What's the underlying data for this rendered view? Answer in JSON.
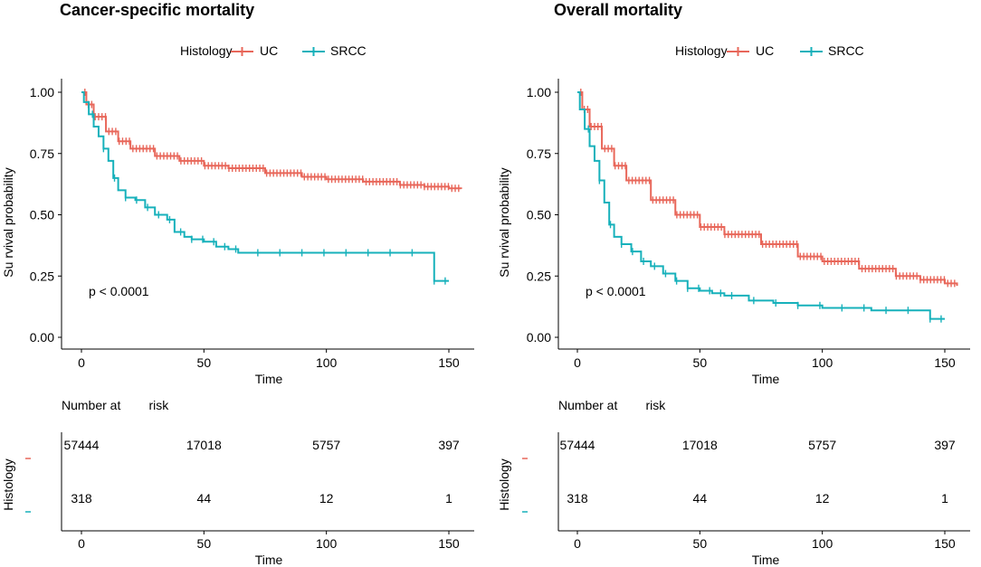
{
  "chart_data": [
    {
      "type": "line",
      "chart_kind": "kaplan-meier",
      "title": "Cancer-specific mortality",
      "xlabel": "Time",
      "ylabel": "Su rvival probability",
      "xlim": [
        0,
        155
      ],
      "ylim": [
        0,
        1
      ],
      "xticks": [
        "0",
        "50",
        "100",
        "150"
      ],
      "xtick_values": [
        0,
        50,
        100,
        150
      ],
      "yticks": [
        "0.00",
        "0.25",
        "0.50",
        "0.75",
        "1.00"
      ],
      "ytick_values": [
        0,
        0.25,
        0.5,
        0.75,
        1
      ],
      "legend_title": "Histology",
      "pvalue": "p < 0.0001",
      "series": [
        {
          "name": "UC",
          "color": "#e8675a",
          "x": [
            0,
            2,
            5,
            10,
            15,
            20,
            30,
            40,
            50,
            60,
            75,
            90,
            100,
            115,
            130,
            140,
            150,
            155
          ],
          "values": [
            1.0,
            0.95,
            0.9,
            0.84,
            0.8,
            0.77,
            0.74,
            0.72,
            0.7,
            0.69,
            0.67,
            0.655,
            0.645,
            0.635,
            0.622,
            0.615,
            0.608,
            0.605
          ]
        },
        {
          "name": "SRCC",
          "color": "#17b1bb",
          "x": [
            0,
            1,
            3,
            5,
            7,
            9,
            11,
            13,
            15,
            18,
            22,
            26,
            30,
            35,
            38,
            42,
            45,
            50,
            55,
            60,
            64,
            70,
            80,
            100,
            120,
            144,
            144,
            150
          ],
          "values": [
            1.0,
            0.96,
            0.91,
            0.86,
            0.82,
            0.77,
            0.72,
            0.65,
            0.6,
            0.57,
            0.56,
            0.53,
            0.5,
            0.48,
            0.43,
            0.41,
            0.4,
            0.39,
            0.37,
            0.36,
            0.345,
            0.345,
            0.345,
            0.345,
            0.345,
            0.345,
            0.23,
            0.23
          ]
        }
      ]
    },
    {
      "type": "line",
      "chart_kind": "kaplan-meier",
      "title": "Overall mortality",
      "xlabel": "Time",
      "ylabel": "Su rvival probability",
      "xlim": [
        0,
        155
      ],
      "ylim": [
        0,
        1
      ],
      "xticks": [
        "0",
        "50",
        "100",
        "150"
      ],
      "xtick_values": [
        0,
        50,
        100,
        150
      ],
      "yticks": [
        "0.00",
        "0.25",
        "0.50",
        "0.75",
        "1.00"
      ],
      "ytick_values": [
        0,
        0.25,
        0.5,
        0.75,
        1
      ],
      "legend_title": "Histology",
      "pvalue": "p < 0.0001",
      "series": [
        {
          "name": "UC",
          "color": "#e8675a",
          "x": [
            0,
            2,
            5,
            10,
            15,
            20,
            30,
            40,
            50,
            60,
            75,
            90,
            100,
            115,
            130,
            140,
            150,
            155
          ],
          "values": [
            1.0,
            0.93,
            0.86,
            0.77,
            0.7,
            0.64,
            0.56,
            0.5,
            0.45,
            0.42,
            0.38,
            0.33,
            0.31,
            0.28,
            0.25,
            0.235,
            0.22,
            0.21
          ]
        },
        {
          "name": "SRCC",
          "color": "#17b1bb",
          "x": [
            0,
            1,
            3,
            5,
            7,
            9,
            11,
            13,
            15,
            18,
            22,
            26,
            30,
            35,
            40,
            45,
            50,
            55,
            60,
            70,
            80,
            90,
            100,
            120,
            144,
            144,
            150
          ],
          "values": [
            1.0,
            0.93,
            0.85,
            0.78,
            0.72,
            0.64,
            0.55,
            0.46,
            0.41,
            0.38,
            0.35,
            0.31,
            0.29,
            0.26,
            0.23,
            0.2,
            0.19,
            0.18,
            0.17,
            0.15,
            0.14,
            0.13,
            0.12,
            0.11,
            0.11,
            0.075,
            0.075
          ]
        }
      ]
    }
  ],
  "risk_tables": [
    {
      "title": "Number at        risk",
      "ylabel": "Histology",
      "xlabel": "Time",
      "xticks": [
        "0",
        "50",
        "100",
        "150"
      ],
      "xtick_values": [
        0,
        50,
        100,
        150
      ],
      "rows": [
        {
          "color": "#e8675a",
          "counts": [
            "57444",
            "17018",
            "5757",
            "397"
          ]
        },
        {
          "color": "#17b1bb",
          "counts": [
            "318",
            "44",
            "12",
            "1"
          ]
        }
      ]
    },
    {
      "title": "Number at        risk",
      "ylabel": "Histology",
      "xlabel": "Time",
      "xticks": [
        "0",
        "50",
        "100",
        "150"
      ],
      "xtick_values": [
        0,
        50,
        100,
        150
      ],
      "rows": [
        {
          "color": "#e8675a",
          "counts": [
            "57444",
            "17018",
            "5757",
            "397"
          ]
        },
        {
          "color": "#17b1bb",
          "counts": [
            "318",
            "44",
            "12",
            "1"
          ]
        }
      ]
    }
  ]
}
